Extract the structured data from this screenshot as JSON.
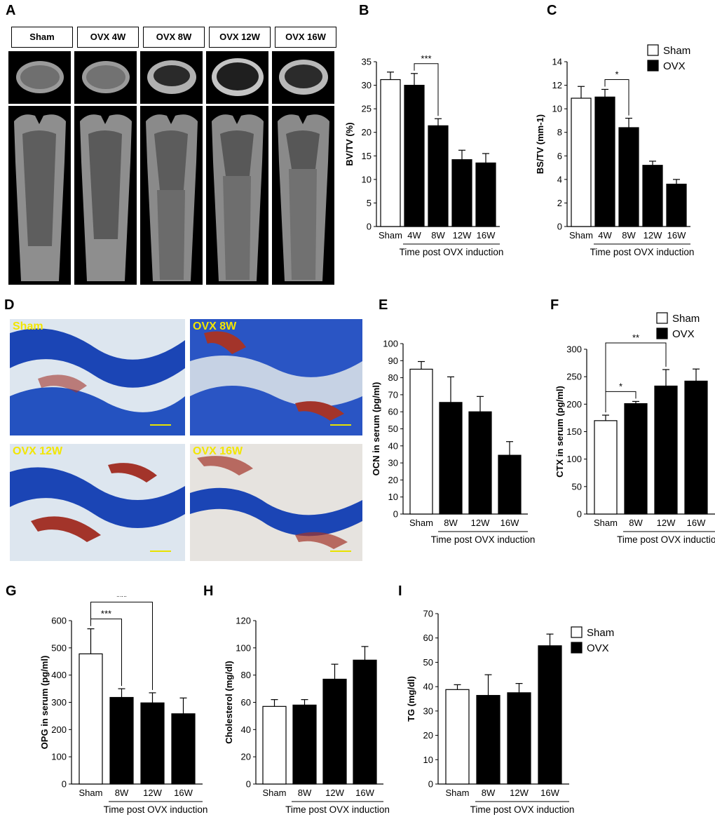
{
  "panel_letters": [
    "A",
    "B",
    "C",
    "D",
    "E",
    "F",
    "G",
    "H",
    "I"
  ],
  "microct": {
    "labels": [
      "Sham",
      "OVX 4W",
      "OVX 8W",
      "OVX 12W",
      "OVX 16W"
    ]
  },
  "histology": {
    "labels": [
      "Sham",
      "OVX 8W",
      "OVX 12W",
      "OVX 16W"
    ],
    "colors": {
      "stain_blue": "#1b45b5",
      "marrow_red": "#a3342a",
      "background": "#dde6ef",
      "label_yellow": "#f2e600",
      "scale_bar": "#e8e200"
    }
  },
  "legend": {
    "sham": "Sham",
    "ovx": "OVX"
  },
  "chart_data": [
    {
      "id": "B",
      "type": "bar",
      "categories": [
        "Sham",
        "4W",
        "8W",
        "12W",
        "16W"
      ],
      "values": [
        31.2,
        30.0,
        21.4,
        14.2,
        13.5
      ],
      "errors": [
        1.6,
        2.5,
        1.5,
        2.0,
        2.0
      ],
      "groups": [
        "sham",
        "ovx",
        "ovx",
        "ovx",
        "ovx"
      ],
      "ylabel": "BV/TV (%)",
      "xlabel": "Time post OVX induction",
      "ylim": [
        0,
        35
      ],
      "yticks": [
        0,
        5,
        10,
        15,
        20,
        25,
        30,
        35
      ],
      "significance": [
        {
          "from": 1,
          "to": 2,
          "label": "***"
        }
      ],
      "legend": false
    },
    {
      "id": "C",
      "type": "bar",
      "categories": [
        "Sham",
        "4W",
        "8W",
        "12W",
        "16W"
      ],
      "values": [
        10.9,
        11.0,
        8.4,
        5.2,
        3.6
      ],
      "errors": [
        1.0,
        0.65,
        0.8,
        0.35,
        0.4
      ],
      "groups": [
        "sham",
        "ovx",
        "ovx",
        "ovx",
        "ovx"
      ],
      "ylabel": "BS/TV (mm-1)",
      "xlabel": "Time post OVX induction",
      "ylim": [
        0,
        14
      ],
      "yticks": [
        0,
        2,
        4,
        6,
        8,
        10,
        12,
        14
      ],
      "significance": [
        {
          "from": 1,
          "to": 2,
          "label": "*"
        }
      ],
      "legend": true,
      "legend_position": "top-right"
    },
    {
      "id": "E",
      "type": "bar",
      "categories": [
        "Sham",
        "8W",
        "12W",
        "16W"
      ],
      "values": [
        85.0,
        65.5,
        60.0,
        34.5
      ],
      "errors": [
        4.5,
        15.0,
        9.0,
        8.0
      ],
      "groups": [
        "sham",
        "ovx",
        "ovx",
        "ovx"
      ],
      "ylabel": "OCN in serum (pg/ml)",
      "xlabel": "Time post OVX induction",
      "ylim": [
        0,
        100
      ],
      "yticks": [
        0,
        10,
        20,
        30,
        40,
        50,
        60,
        70,
        80,
        90,
        100
      ],
      "significance": [],
      "legend": false
    },
    {
      "id": "F",
      "type": "bar",
      "categories": [
        "Sham",
        "8W",
        "12W",
        "16W"
      ],
      "values": [
        170,
        201,
        233,
        242
      ],
      "errors": [
        10,
        4,
        30,
        22
      ],
      "groups": [
        "sham",
        "ovx",
        "ovx",
        "ovx"
      ],
      "ylabel": "CTX in serum (pg/ml)",
      "xlabel": "Time post OVX induction",
      "ylim": [
        0,
        300
      ],
      "yticks": [
        0,
        50,
        100,
        150,
        200,
        250,
        300
      ],
      "significance": [
        {
          "from": 0,
          "to": 1,
          "label": "*"
        },
        {
          "from": 0,
          "to": 2,
          "label": "**"
        }
      ],
      "legend": true,
      "legend_position": "top-right"
    },
    {
      "id": "G",
      "type": "bar",
      "categories": [
        "Sham",
        "8W",
        "12W",
        "16W"
      ],
      "values": [
        478,
        318,
        298,
        258
      ],
      "errors": [
        92,
        32,
        37,
        58
      ],
      "groups": [
        "sham",
        "ovx",
        "ovx",
        "ovx"
      ],
      "ylabel": "OPG in serum (pg/ml)",
      "xlabel": "Time post OVX induction",
      "ylim": [
        0,
        600
      ],
      "yticks": [
        0,
        100,
        200,
        300,
        400,
        500,
        600
      ],
      "significance": [
        {
          "from": 0,
          "to": 1,
          "label": "***"
        },
        {
          "from": 0,
          "to": 2,
          "label": "***"
        }
      ],
      "legend": false
    },
    {
      "id": "H",
      "type": "bar",
      "categories": [
        "Sham",
        "8W",
        "12W",
        "16W"
      ],
      "values": [
        57,
        58,
        77,
        91
      ],
      "errors": [
        5,
        4,
        11,
        10
      ],
      "groups": [
        "sham",
        "ovx",
        "ovx",
        "ovx"
      ],
      "ylabel": "Cholesterol (mg/dl)",
      "xlabel": "Time post OVX induction",
      "ylim": [
        0,
        120
      ],
      "yticks": [
        0,
        20,
        40,
        60,
        80,
        100,
        120
      ],
      "significance": [],
      "legend": false
    },
    {
      "id": "I",
      "type": "bar",
      "categories": [
        "Sham",
        "8W",
        "12W",
        "16W"
      ],
      "values": [
        38.8,
        36.4,
        37.5,
        56.8
      ],
      "errors": [
        2.0,
        8.5,
        3.8,
        4.8
      ],
      "groups": [
        "sham",
        "ovx",
        "ovx",
        "ovx"
      ],
      "ylabel": "TG (mg/dl)",
      "xlabel": "Time post OVX induction",
      "ylim": [
        0,
        70
      ],
      "yticks": [
        0,
        10,
        20,
        30,
        40,
        50,
        60,
        70
      ],
      "significance": [],
      "legend": true,
      "legend_position": "top-right"
    }
  ]
}
